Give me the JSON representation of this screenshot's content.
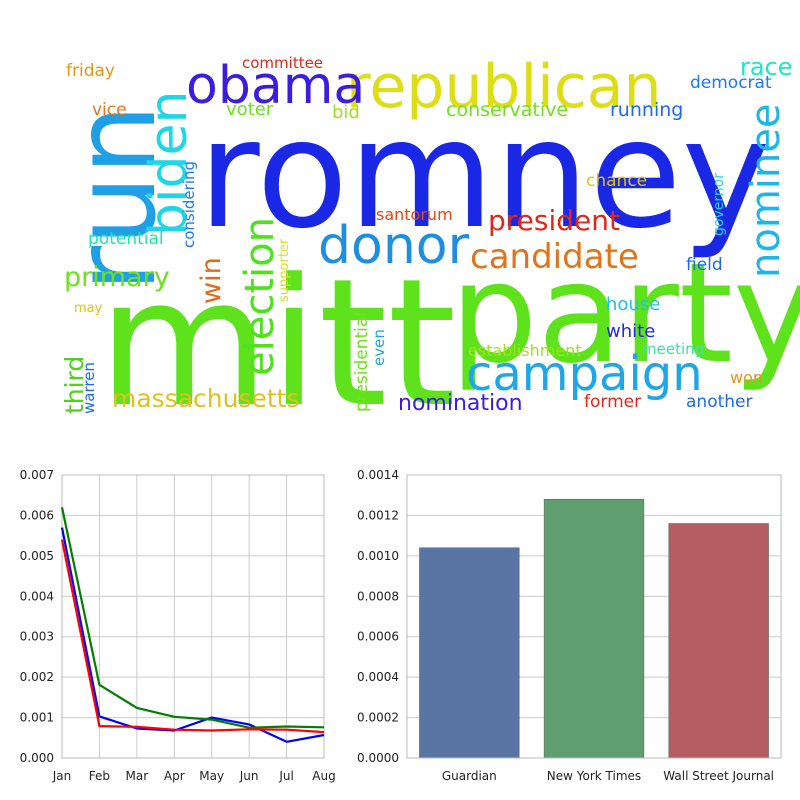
{
  "word_cloud": {
    "words": [
      {
        "text": "romney",
        "color": "#1a28e6"
      },
      {
        "text": "mitt",
        "color": "#5ee21c"
      },
      {
        "text": "party",
        "color": "#5ee21c"
      },
      {
        "text": "run",
        "color": "#1e9fe6"
      },
      {
        "text": "republican",
        "color": "#dede16"
      },
      {
        "text": "obama",
        "color": "#3a1de0"
      },
      {
        "text": "biden",
        "color": "#1ed6e6"
      },
      {
        "text": "donor",
        "color": "#1e8fe0"
      },
      {
        "text": "campaign",
        "color": "#1ea6e6"
      },
      {
        "text": "nominee",
        "color": "#1eb6e6"
      },
      {
        "text": "election",
        "color": "#4ee21c"
      },
      {
        "text": "candidate",
        "color": "#e0741a"
      },
      {
        "text": "president",
        "color": "#e0281a"
      },
      {
        "text": "massachusetts",
        "color": "#dec21c"
      },
      {
        "text": "primary",
        "color": "#6ee21c"
      },
      {
        "text": "win",
        "color": "#e06a1a"
      },
      {
        "text": "third",
        "color": "#4ed21c"
      },
      {
        "text": "nomination",
        "color": "#3a1de0"
      },
      {
        "text": "race",
        "color": "#1ee6c2"
      },
      {
        "text": "conservative",
        "color": "#6ee21c"
      },
      {
        "text": "running",
        "color": "#1e6ae6"
      },
      {
        "text": "democrat",
        "color": "#1e7ae6"
      },
      {
        "text": "committee",
        "color": "#e0281a"
      },
      {
        "text": "friday",
        "color": "#e0981a"
      },
      {
        "text": "vice",
        "color": "#e07a1a"
      },
      {
        "text": "voter",
        "color": "#6ee21c"
      },
      {
        "text": "bid",
        "color": "#9ee21c"
      },
      {
        "text": "considering",
        "color": "#1e7ae6"
      },
      {
        "text": "potential",
        "color": "#1ee6a6"
      },
      {
        "text": "chance",
        "color": "#dec21c"
      },
      {
        "text": "santorum",
        "color": "#e0481a"
      },
      {
        "text": "governor",
        "color": "#1ed6e6"
      },
      {
        "text": "supporter",
        "color": "#dede16"
      },
      {
        "text": "field",
        "color": "#1e6ae6"
      },
      {
        "text": "house",
        "color": "#1ec2e6"
      },
      {
        "text": "white",
        "color": "#1e2ae6"
      },
      {
        "text": "establishment",
        "color": "#9ee21c"
      },
      {
        "text": "meeting",
        "color": "#3ee2a6"
      },
      {
        "text": "presidential",
        "color": "#6ee21c"
      },
      {
        "text": "even",
        "color": "#1ea6e6"
      },
      {
        "text": "may",
        "color": "#dec21c"
      },
      {
        "text": "warren",
        "color": "#1e6ae6"
      },
      {
        "text": "won",
        "color": "#e0981a"
      },
      {
        "text": "former",
        "color": "#e0281a"
      },
      {
        "text": "another",
        "color": "#1e6ae6"
      }
    ]
  },
  "chart_data": [
    {
      "type": "line",
      "title": "",
      "xlabel": "",
      "ylabel": "",
      "x": [
        "Jan",
        "Feb",
        "Mar",
        "Apr",
        "May",
        "Jun",
        "Jul",
        "Aug"
      ],
      "ylim": [
        0,
        0.007
      ],
      "yticks": [
        "0.000",
        "0.001",
        "0.002",
        "0.003",
        "0.004",
        "0.005",
        "0.006",
        "0.007"
      ],
      "grid": true,
      "series": [
        {
          "color": "#0000ff",
          "values": [
            0.0057,
            0.00103,
            0.00073,
            0.00068,
            0.001,
            0.00083,
            0.0004,
            0.00057
          ]
        },
        {
          "color": "#008000",
          "values": [
            0.0062,
            0.00181,
            0.00124,
            0.00102,
            0.00095,
            0.00075,
            0.00078,
            0.00076
          ]
        },
        {
          "color": "#ff0000",
          "values": [
            0.0054,
            0.00079,
            0.00077,
            0.0007,
            0.00068,
            0.00071,
            0.0007,
            0.00064
          ]
        }
      ]
    },
    {
      "type": "bar",
      "title": "",
      "xlabel": "",
      "ylabel": "",
      "categories": [
        "Guardian",
        "New York Times",
        "Wall Street Journal"
      ],
      "values": [
        0.00104,
        0.00128,
        0.00116
      ],
      "colors": [
        "#5975a4",
        "#5f9e6e",
        "#b55d60"
      ],
      "ylim": [
        0,
        0.0014
      ],
      "yticks": [
        "0.0000",
        "0.0002",
        "0.0004",
        "0.0006",
        "0.0008",
        "0.0010",
        "0.0012",
        "0.0014"
      ],
      "grid": true
    }
  ]
}
